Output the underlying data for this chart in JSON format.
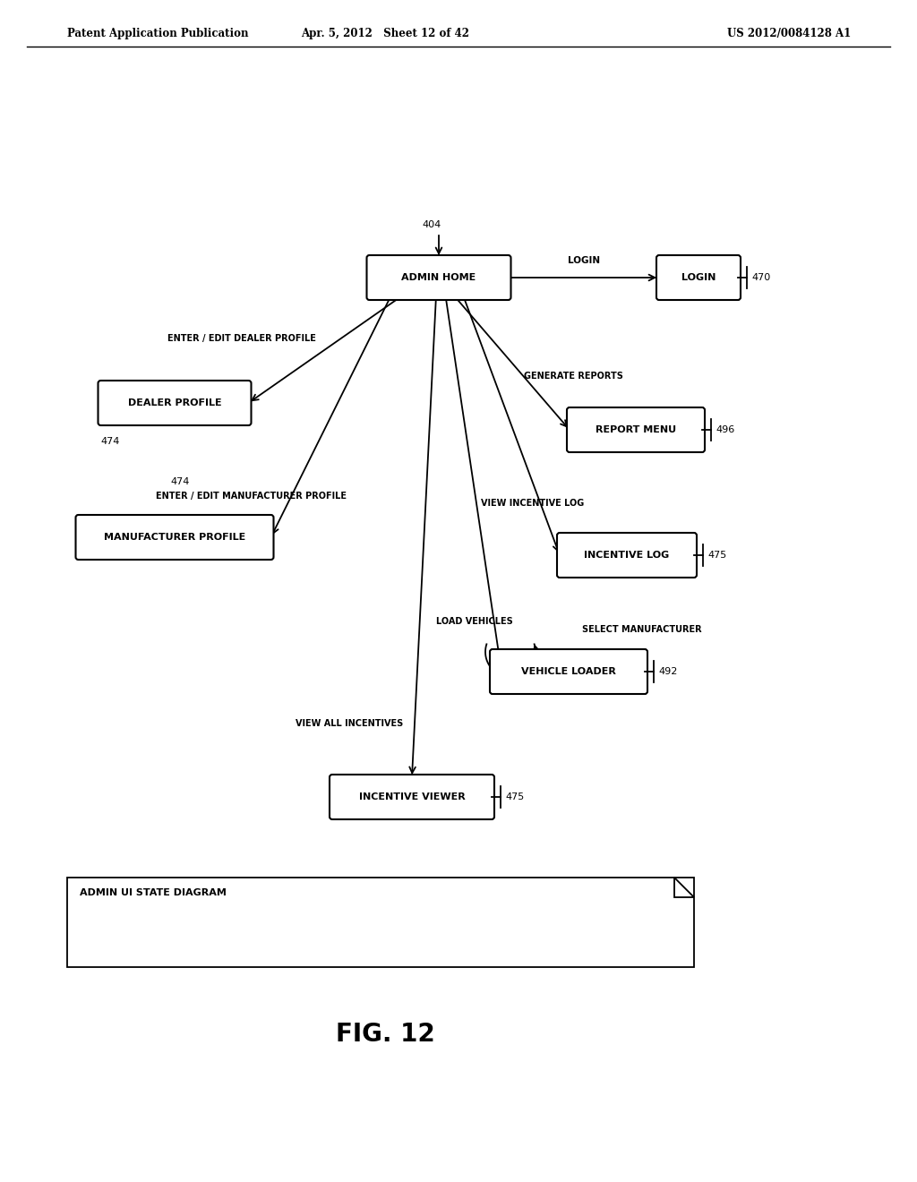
{
  "header_left": "Patent Application Publication",
  "header_center": "Apr. 5, 2012   Sheet 12 of 42",
  "header_right": "US 2012/0084128 A1",
  "figure_label": "FIG. 12",
  "legend_text": "ADMIN UI STATE DIAGRAM",
  "bg_color": "#ffffff"
}
